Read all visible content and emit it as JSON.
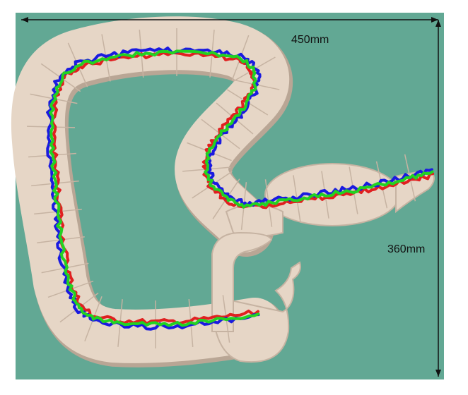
{
  "figure": {
    "width_label": "450mm",
    "height_label": "360mm"
  },
  "colors": {
    "background": "#62a894",
    "tissue": "#e6d6c6",
    "tissue_edge": "#c6b3a2",
    "tissue_shadow": "#b9a695",
    "track_green": "#22d222",
    "track_blue": "#1a1ae0",
    "track_red": "#e02020",
    "arrow": "#111111"
  },
  "tracks": [
    "green",
    "blue",
    "red"
  ]
}
